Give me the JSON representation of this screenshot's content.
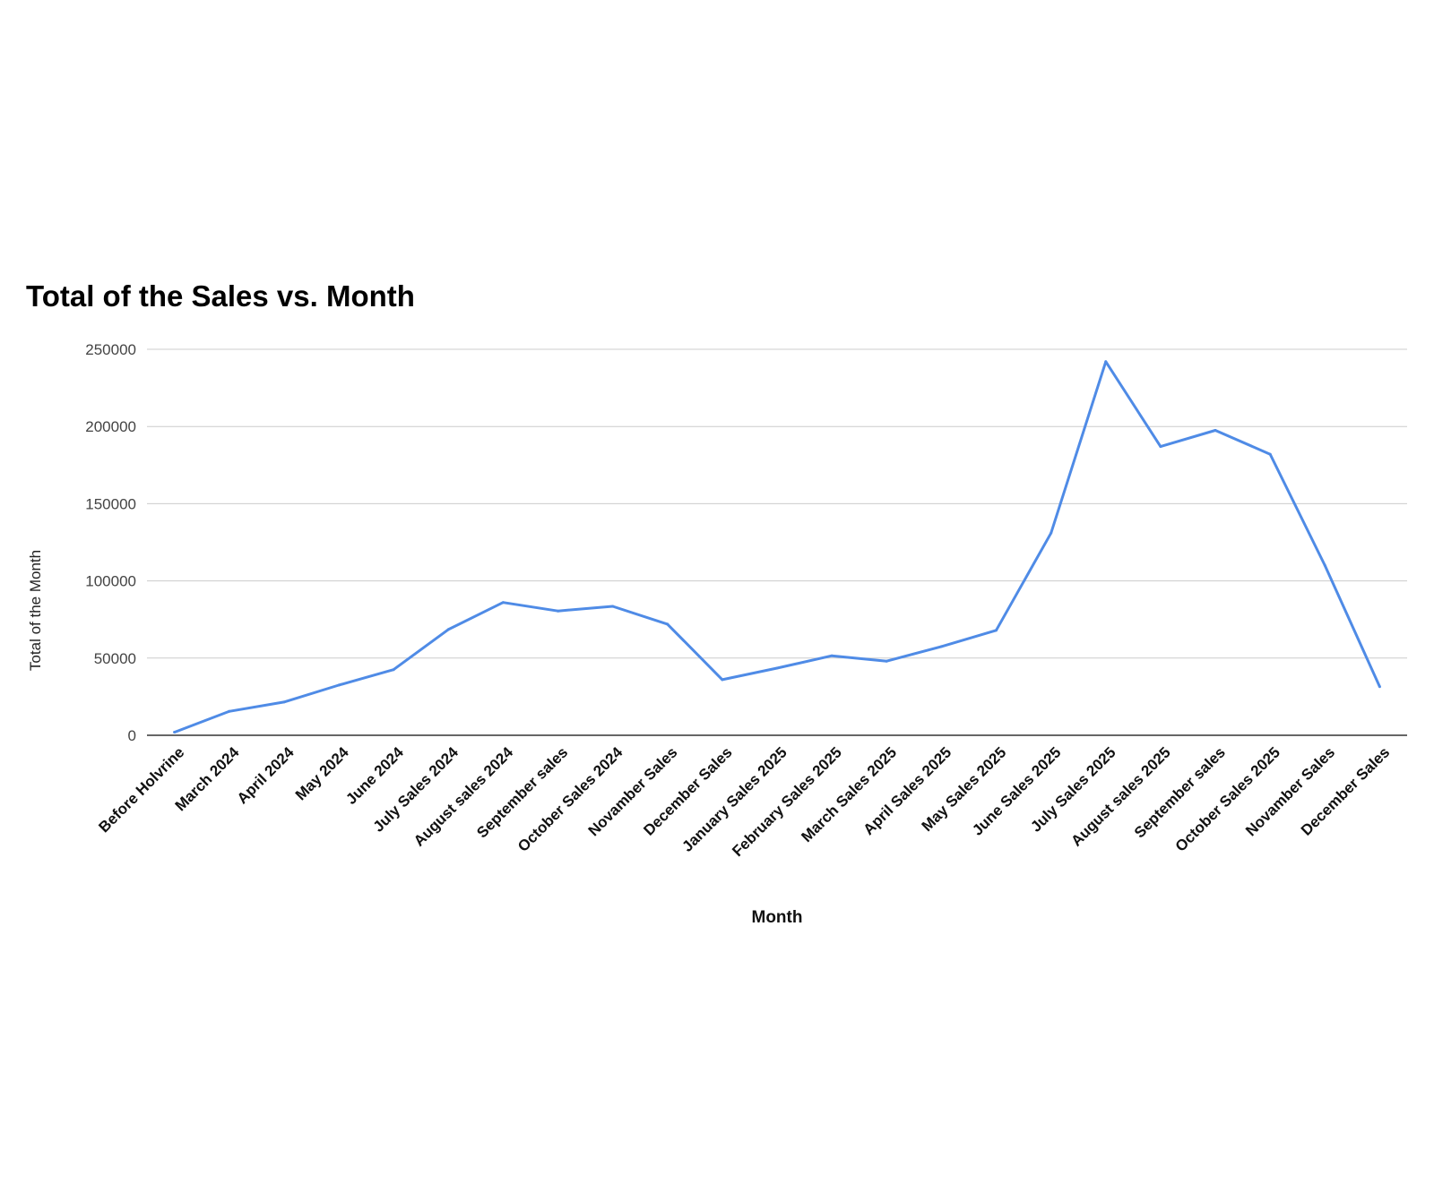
{
  "chart_data": {
    "type": "line",
    "title": "Total of the Sales vs. Month",
    "xlabel": "Month",
    "ylabel": "Total of the Month",
    "ylim": [
      0,
      250000
    ],
    "yticks": [
      "0",
      "50000",
      "100000",
      "150000",
      "200000",
      "250000"
    ],
    "grid": true,
    "legend": "none",
    "line_color": "#4f8be6",
    "categories": [
      "Before Holvrine",
      "March 2024",
      "April 2024",
      "May 2024",
      "June 2024",
      "July Sales 2024",
      "August sales 2024",
      "September sales",
      "October Sales 2024",
      "Novamber Sales",
      "December Sales",
      "January Sales 2025",
      "February Sales 2025",
      "March Sales 2025",
      "April Sales 2025",
      "May Sales 2025",
      "June Sales 2025",
      "July Sales 2025",
      "August sales 2025",
      "September sales",
      "October Sales 2025",
      "Novamber Sales",
      "December Sales"
    ],
    "series": [
      {
        "name": "Total of the Month",
        "values": [
          2000,
          15500,
          21500,
          32500,
          42500,
          68500,
          86000,
          80500,
          83500,
          72000,
          36000,
          43500,
          51500,
          48000,
          57500,
          68000,
          131000,
          242000,
          187000,
          197500,
          182000,
          110000,
          31500
        ]
      }
    ]
  }
}
